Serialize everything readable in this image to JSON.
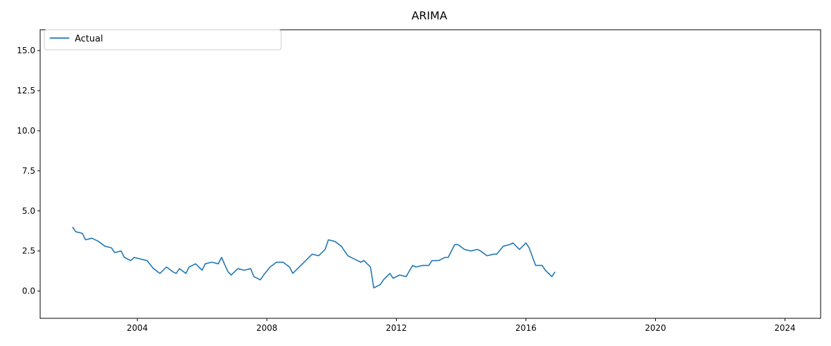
{
  "chart_data": {
    "type": "line",
    "title": "ARIMA",
    "xlabel": "",
    "ylabel": "",
    "xlim": [
      2001.0,
      2025.1
    ],
    "ylim": [
      -1.7,
      16.3
    ],
    "x_ticks": [
      2004,
      2008,
      2012,
      2016,
      2020,
      2024
    ],
    "x_tick_labels": [
      "2004",
      "2008",
      "2012",
      "2016",
      "2020",
      "2024"
    ],
    "y_ticks": [
      0.0,
      2.5,
      5.0,
      7.5,
      10.0,
      12.5,
      15.0
    ],
    "y_tick_labels": [
      "0.0",
      "2.5",
      "5.0",
      "7.5",
      "10.0",
      "12.5",
      "15.0"
    ],
    "grid": false,
    "legend_position": "top-left",
    "series": [
      {
        "name": "Actual",
        "color": "#1f77b4",
        "style": "solid",
        "points": [
          [
            2002.0,
            4.0
          ],
          [
            2002.1,
            3.7
          ],
          [
            2002.3,
            3.6
          ],
          [
            2002.4,
            3.2
          ],
          [
            2002.6,
            3.3
          ],
          [
            2002.8,
            3.1
          ],
          [
            2003.0,
            2.8
          ],
          [
            2003.2,
            2.7
          ],
          [
            2003.3,
            2.4
          ],
          [
            2003.5,
            2.5
          ],
          [
            2003.6,
            2.1
          ],
          [
            2003.8,
            1.9
          ],
          [
            2003.9,
            2.1
          ],
          [
            2004.1,
            2.0
          ],
          [
            2004.3,
            1.9
          ],
          [
            2004.5,
            1.4
          ],
          [
            2004.7,
            1.1
          ],
          [
            2004.9,
            1.5
          ],
          [
            2005.1,
            1.2
          ],
          [
            2005.2,
            1.1
          ],
          [
            2005.3,
            1.4
          ],
          [
            2005.5,
            1.1
          ],
          [
            2005.6,
            1.5
          ],
          [
            2005.8,
            1.7
          ],
          [
            2006.0,
            1.3
          ],
          [
            2006.1,
            1.7
          ],
          [
            2006.3,
            1.8
          ],
          [
            2006.5,
            1.7
          ],
          [
            2006.6,
            2.1
          ],
          [
            2006.8,
            1.2
          ],
          [
            2006.9,
            1.0
          ],
          [
            2007.1,
            1.4
          ],
          [
            2007.3,
            1.3
          ],
          [
            2007.5,
            1.4
          ],
          [
            2007.6,
            0.9
          ],
          [
            2007.8,
            0.7
          ],
          [
            2007.9,
            1.0
          ],
          [
            2008.1,
            1.5
          ],
          [
            2008.3,
            1.8
          ],
          [
            2008.5,
            1.8
          ],
          [
            2008.7,
            1.5
          ],
          [
            2008.8,
            1.1
          ],
          [
            2009.0,
            1.5
          ],
          [
            2009.2,
            1.9
          ],
          [
            2009.4,
            2.3
          ],
          [
            2009.6,
            2.2
          ],
          [
            2009.8,
            2.6
          ],
          [
            2009.9,
            3.2
          ],
          [
            2010.1,
            3.1
          ],
          [
            2010.3,
            2.8
          ],
          [
            2010.5,
            2.2
          ],
          [
            2010.7,
            2.0
          ],
          [
            2010.9,
            1.8
          ],
          [
            2011.0,
            1.9
          ],
          [
            2011.2,
            1.5
          ],
          [
            2011.3,
            0.2
          ],
          [
            2011.5,
            0.4
          ],
          [
            2011.6,
            0.7
          ],
          [
            2011.8,
            1.1
          ],
          [
            2011.9,
            0.8
          ],
          [
            2012.1,
            1.0
          ],
          [
            2012.3,
            0.9
          ],
          [
            2012.5,
            1.6
          ],
          [
            2012.6,
            1.5
          ],
          [
            2012.8,
            1.6
          ],
          [
            2013.0,
            1.6
          ],
          [
            2013.1,
            1.9
          ],
          [
            2013.3,
            1.9
          ],
          [
            2013.5,
            2.1
          ],
          [
            2013.6,
            2.1
          ],
          [
            2013.8,
            2.9
          ],
          [
            2013.9,
            2.9
          ],
          [
            2014.1,
            2.6
          ],
          [
            2014.3,
            2.5
          ],
          [
            2014.5,
            2.6
          ],
          [
            2014.6,
            2.5
          ],
          [
            2014.8,
            2.2
          ],
          [
            2015.0,
            2.3
          ],
          [
            2015.1,
            2.3
          ],
          [
            2015.3,
            2.8
          ],
          [
            2015.5,
            2.9
          ],
          [
            2015.6,
            3.0
          ],
          [
            2015.8,
            2.6
          ],
          [
            2016.0,
            3.0
          ],
          [
            2016.1,
            2.7
          ],
          [
            2016.3,
            1.6
          ],
          [
            2016.5,
            1.6
          ],
          [
            2016.6,
            1.3
          ],
          [
            2016.8,
            0.9
          ],
          [
            2016.9,
            1.2
          ]
        ]
      }
    ]
  }
}
